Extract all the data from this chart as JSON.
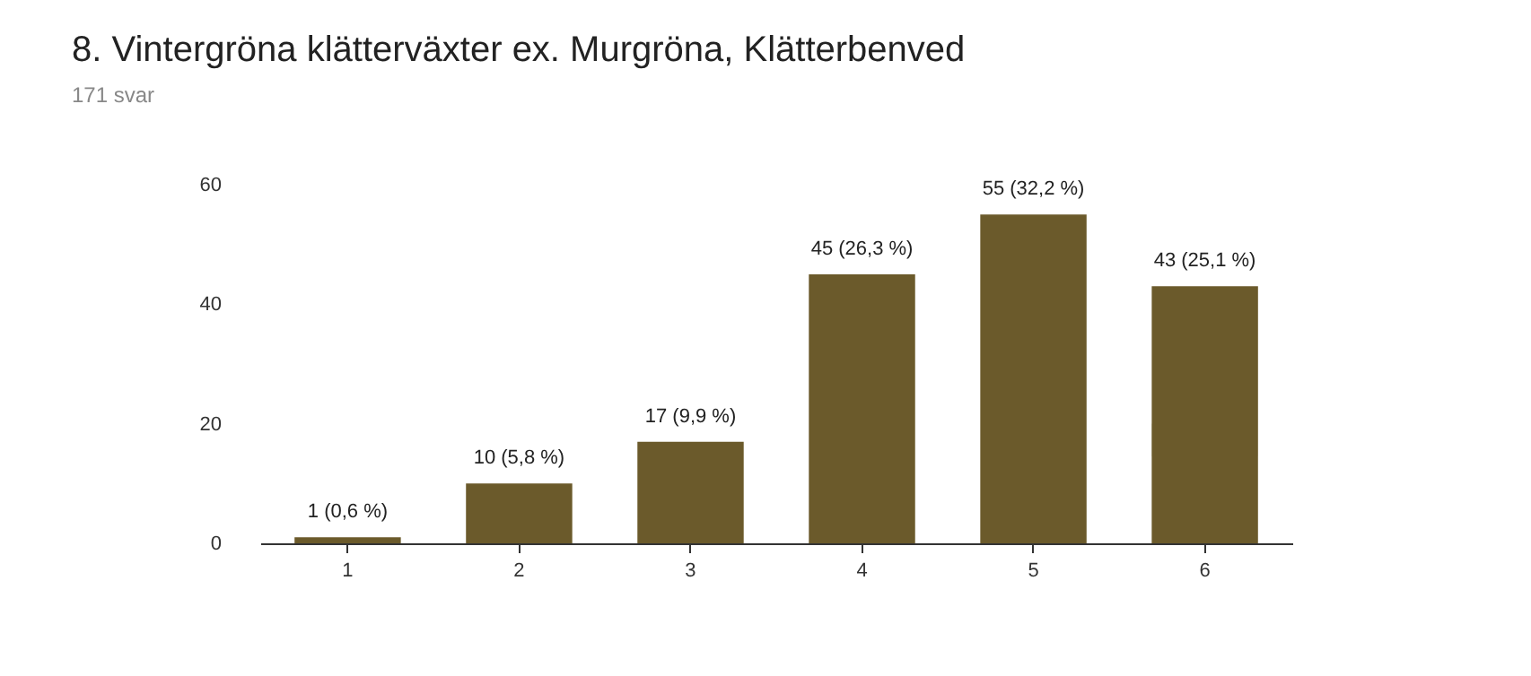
{
  "chart_data": {
    "type": "bar",
    "title": "8. Vintergröna klätterväxter ex. Murgröna, Klätterbenved",
    "subtitle": "171 svar",
    "categories": [
      "1",
      "2",
      "3",
      "4",
      "5",
      "6"
    ],
    "values": [
      1,
      10,
      17,
      45,
      55,
      43
    ],
    "value_labels": [
      "1 (0,6 %)",
      "10 (5,8 %)",
      "17 (9,9 %)",
      "45 (26,3 %)",
      "55 (32,2 %)",
      "43 (25,1 %)"
    ],
    "color": "#6b5a2b",
    "ylim": [
      0,
      60
    ],
    "yticks": [
      0,
      20,
      40,
      60
    ],
    "grid": false
  }
}
